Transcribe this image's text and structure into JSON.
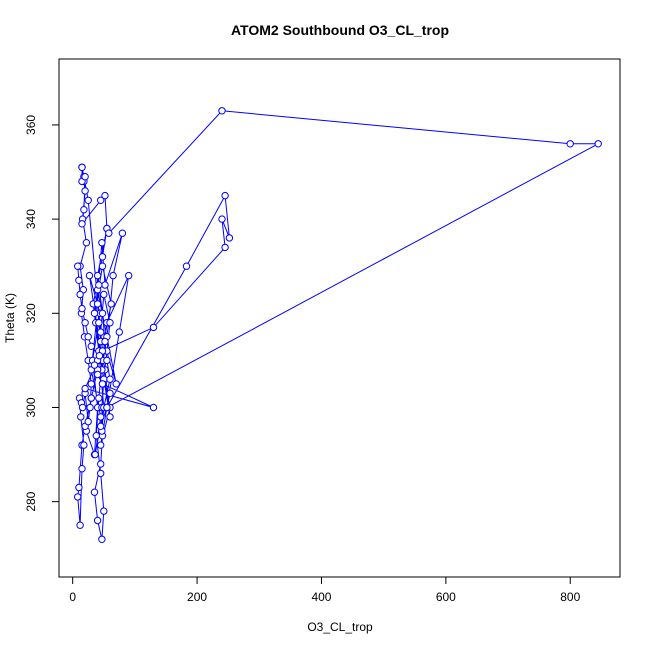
{
  "chart_data": {
    "type": "line",
    "title": "ATOM2 Southbound O3_CL_trop",
    "xlabel": "O3_CL_trop",
    "ylabel": "Theta (K)",
    "xlim": [
      -22,
      880
    ],
    "ylim": [
      264,
      374
    ],
    "xticks": [
      0,
      200,
      400,
      600,
      800
    ],
    "yticks": [
      280,
      300,
      320,
      340,
      360
    ],
    "grid": false,
    "marker": "open-circle",
    "series_color": "#0000ff",
    "series": [
      {
        "x": [
          15,
          18,
          20,
          16,
          22,
          12,
          17,
          14,
          19,
          25,
          30,
          28,
          22,
          35,
          40,
          32,
          44,
          27,
          38,
          30,
          45,
          36,
          50,
          42,
          33,
          48,
          55,
          40,
          37,
          52,
          60,
          45,
          35,
          48,
          62,
          50,
          70,
          55,
          40,
          47,
          52,
          80,
          65,
          58,
          47,
          60,
          45,
          75,
          90,
          55,
          48,
          42,
          38,
          45,
          50,
          47,
          40,
          35,
          45,
          48,
          47,
          50,
          55,
          60,
          50,
          45,
          40,
          30,
          20,
          15,
          10,
          8,
          12,
          15,
          18,
          13,
          11,
          14,
          16,
          20,
          25,
          30,
          40,
          48,
          130,
          20,
          40,
          45,
          42,
          40,
          42,
          48,
          52,
          55,
          60,
          50,
          47,
          45,
          55,
          183,
          245,
          252,
          240,
          245,
          130,
          48,
          25,
          18,
          15,
          15,
          20,
          18,
          15,
          45,
          52,
          55,
          58,
          240,
          800,
          845,
          55,
          60,
          48,
          40,
          35,
          43,
          30,
          25,
          20,
          15,
          12,
          10,
          8
        ],
        "y": [
          351,
          348,
          346,
          340,
          335,
          330,
          325,
          320,
          315,
          310,
          305,
          300,
          295,
          290,
          300,
          310,
          320,
          328,
          318,
          308,
          298,
          290,
          300,
          312,
          322,
          332,
          338,
          328,
          318,
          308,
          298,
          310,
          320,
          330,
          322,
          314,
          305,
          315,
          325,
          335,
          326,
          337,
          328,
          318,
          308,
          300,
          292,
          316,
          328,
          318,
          310,
          302,
          294,
          286,
          278,
          272,
          276,
          282,
          288,
          294,
          300,
          306,
          312,
          318,
          324,
          316,
          308,
          302,
          296,
          292,
          283,
          281,
          275,
          287,
          292,
          298,
          302,
          301,
          300,
          303,
          297,
          302,
          308,
          305,
          300,
          304,
          310,
          314,
          318,
          322,
          326,
          320,
          314,
          310,
          306,
          300,
          295,
          296,
          300,
          330,
          345,
          336,
          340,
          334,
          317,
          312,
          344,
          349,
          351,
          348,
          349,
          342,
          339,
          344,
          345,
          338,
          337,
          363,
          356,
          356,
          300,
          303,
          305,
          307,
          309,
          311,
          313,
          315,
          318,
          321,
          324,
          327,
          330
        ]
      }
    ]
  }
}
